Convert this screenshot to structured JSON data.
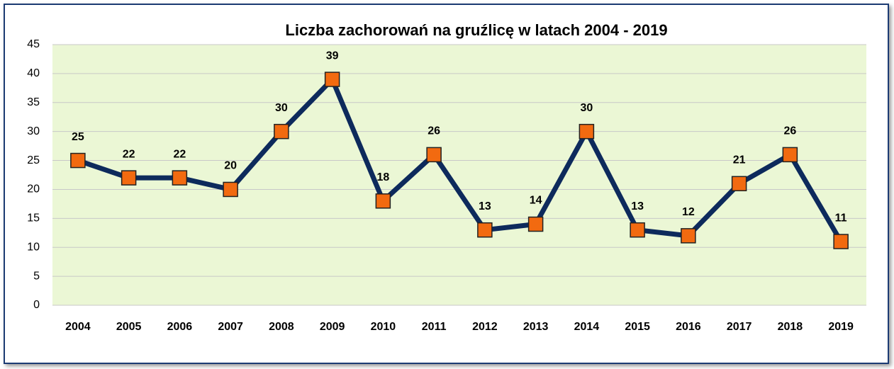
{
  "chart_data": {
    "type": "line",
    "title": "Liczba zachorowań na gruźlicę w latach 2004 - 2019",
    "categories": [
      "2004",
      "2005",
      "2006",
      "2007",
      "2008",
      "2009",
      "2010",
      "2011",
      "2012",
      "2013",
      "2014",
      "2015",
      "2016",
      "2017",
      "2018",
      "2019"
    ],
    "series": [
      {
        "name": "Liczba zachorowań",
        "color": "#0d2a5c",
        "marker_color": "#f26a10",
        "values": [
          25,
          22,
          22,
          20,
          30,
          39,
          18,
          26,
          13,
          14,
          30,
          13,
          12,
          21,
          26,
          11
        ]
      }
    ],
    "ylim": [
      0,
      45
    ],
    "yticks": [
      0,
      5,
      10,
      15,
      20,
      25,
      30,
      35,
      40,
      45
    ],
    "grid": true,
    "legend": false
  }
}
